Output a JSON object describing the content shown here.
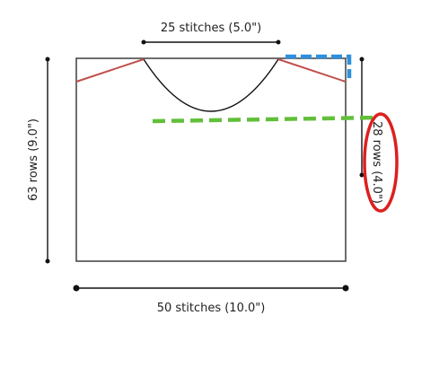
{
  "labels": {
    "neck_width": "25 stitches (5.0\")",
    "body_height": "63 rows (9.0\")",
    "armhole_depth": "28 rows (4.0\")",
    "body_width": "50 stitches (10.0\")"
  },
  "colors": {
    "outline": "#4a4a4a",
    "neck_curve": "#111111",
    "shoulder_slope": "#c0504d",
    "dimension_line": "#111111",
    "blue_marker": "#2e8fdc",
    "green_marker": "#62bf3a",
    "highlight_ellipse": "#dd1f1f"
  }
}
